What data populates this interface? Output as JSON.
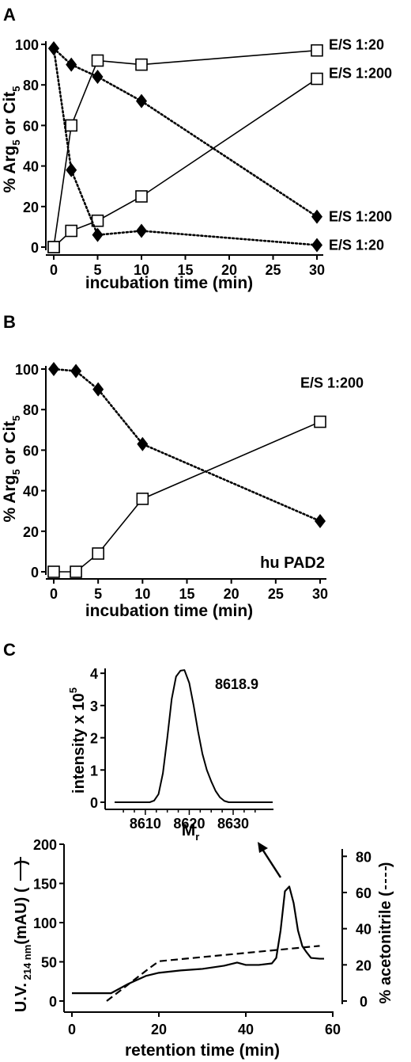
{
  "panels": [
    {
      "letter": "A",
      "chart_data": {
        "type": "line",
        "xlabel": "incubation time (min)",
        "ylabel": [
          "% Arg",
          "5",
          " or Cit",
          "5"
        ],
        "xlim": [
          0,
          30
        ],
        "ylim": [
          0,
          100
        ],
        "xticks": [
          "0",
          "5",
          "10",
          "15",
          "20",
          "25",
          "30"
        ],
        "yticks": [
          "0",
          "20",
          "40",
          "60",
          "80",
          "100"
        ],
        "series": [
          {
            "name": "E/S 1:20",
            "marker": "square",
            "style": "solid",
            "x": [
              0,
              2,
              5,
              10,
              30
            ],
            "values": [
              0,
              60,
              92,
              90,
              97
            ]
          },
          {
            "name": "E/S 1:200",
            "marker": "square",
            "style": "solid",
            "x": [
              0,
              2,
              5,
              10,
              30
            ],
            "values": [
              0,
              8,
              13,
              25,
              83
            ]
          },
          {
            "name": "E/S 1:200",
            "marker": "diamond",
            "style": "dotted",
            "x": [
              0,
              2,
              5,
              10,
              30
            ],
            "values": [
              98,
              90,
              84,
              72,
              15
            ]
          },
          {
            "name": "E/S 1:20",
            "marker": "diamond",
            "style": "dotted",
            "x": [
              0,
              2,
              5,
              10,
              30
            ],
            "values": [
              98,
              38,
              6,
              8,
              1
            ]
          }
        ]
      }
    },
    {
      "letter": "B",
      "annotation": "hu PAD2",
      "chart_data": {
        "type": "line",
        "xlabel": "incubation time (min)",
        "ylabel": [
          "% Arg",
          "5",
          " or Cit",
          "5"
        ],
        "xlim": [
          0,
          30
        ],
        "ylim": [
          0,
          100
        ],
        "xticks": [
          "0",
          "5",
          "10",
          "15",
          "20",
          "25",
          "30"
        ],
        "yticks": [
          "0",
          "20",
          "40",
          "60",
          "80",
          "100"
        ],
        "series": [
          {
            "name": "E/S 1:200",
            "marker": "square",
            "style": "solid",
            "x": [
              0,
              2.5,
              5,
              10,
              30
            ],
            "values": [
              0,
              0,
              9,
              36,
              74
            ]
          },
          {
            "name": "",
            "marker": "diamond",
            "style": "dotted",
            "x": [
              0,
              2.5,
              5,
              10,
              30
            ],
            "values": [
              100,
              99,
              90,
              63,
              25
            ]
          }
        ]
      }
    },
    {
      "letter": "C",
      "inset": {
        "chart_data": {
          "type": "line",
          "xlabel": [
            "M",
            "r"
          ],
          "ylabel": [
            "intensity x 10",
            "5"
          ],
          "peak_label": "8618.9",
          "xlim": [
            8603,
            8639
          ],
          "ylim": [
            0,
            4.2
          ],
          "xticks": [
            "8610",
            "8620",
            "8630"
          ],
          "xtick_values": [
            8610,
            8620,
            8630
          ],
          "yticks": [
            "0",
            "1",
            "2",
            "3",
            "4"
          ],
          "x": [
            8603,
            8611,
            8612,
            8613,
            8614,
            8615,
            8616,
            8617,
            8618,
            8618.9,
            8620,
            8621,
            8622,
            8623,
            8624,
            8625,
            8626,
            8627,
            8628,
            8629,
            8639
          ],
          "values": [
            0,
            0,
            0.05,
            0.25,
            0.9,
            2.0,
            3.2,
            3.9,
            4.08,
            4.1,
            3.7,
            3.0,
            2.2,
            1.5,
            1.0,
            0.65,
            0.35,
            0.15,
            0.04,
            0,
            0
          ]
        }
      },
      "chart_data": {
        "type": "line",
        "xlabel": "retention time (min)",
        "ylabel_left": [
          "U.V.",
          " 214 nm",
          "(mAU) (",
          ")"
        ],
        "ylabel_right": [
          "% acetonitrile (",
          ")"
        ],
        "xlim": [
          0,
          60
        ],
        "ylim_left": [
          0,
          200
        ],
        "ylim_right": [
          0,
          86.7
        ],
        "xticks": [
          "0",
          "20",
          "40",
          "60"
        ],
        "yticks_left": [
          "0",
          "50",
          "100",
          "150",
          "200"
        ],
        "yticks_right": [
          "0",
          "20",
          "40",
          "60",
          "80"
        ],
        "series": [
          {
            "name": "U.V. 214 nm",
            "style": "solid",
            "axis": "left",
            "x": [
              0,
              9,
              13,
              17,
              20,
              25,
              30,
              35,
              38,
              40,
              43,
              46,
              47,
              48,
              49,
              50,
              51,
              52,
              53,
              54,
              55,
              57,
              58
            ],
            "values": [
              10,
              10,
              22,
              32,
              36,
              39,
              41,
              45,
              49,
              46,
              46,
              48,
              55,
              90,
              140,
              146,
              125,
              90,
              70,
              62,
              55,
              54,
              54
            ]
          },
          {
            "name": "% acetonitrile",
            "style": "dashed",
            "axis": "right",
            "x": [
              8,
              18,
              20,
              57
            ],
            "values": [
              0,
              18.5,
              22,
              30.5
            ]
          }
        ]
      }
    }
  ]
}
